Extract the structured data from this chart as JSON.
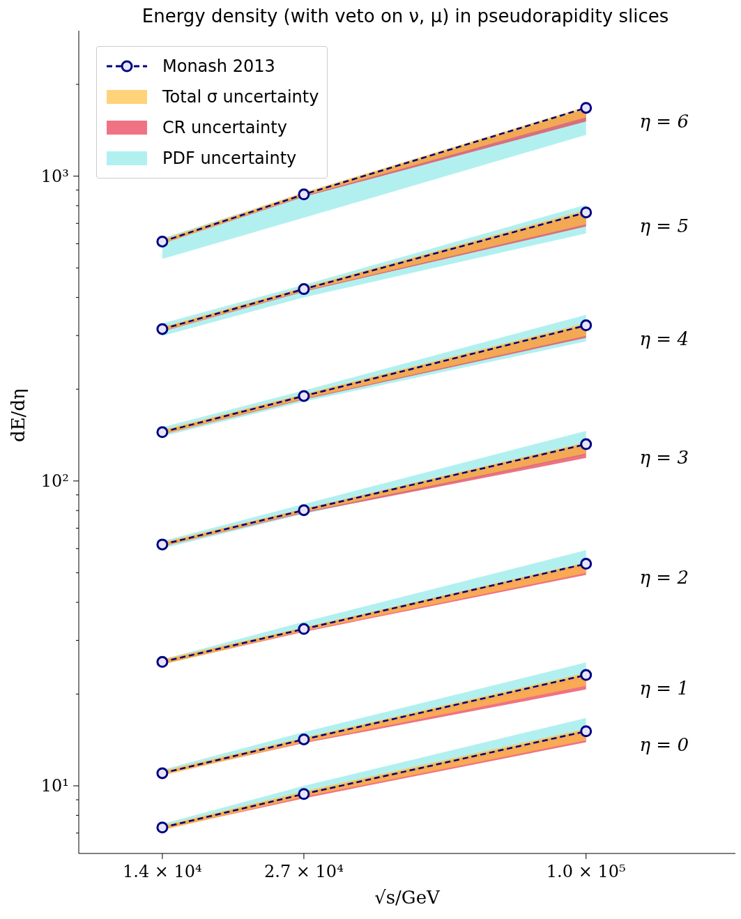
{
  "chart_data": {
    "type": "line",
    "title": "Energy density (with veto on ν, μ) in pseudorapidity slices",
    "xlabel": "√s/GeV",
    "ylabel": "dE/dη",
    "x": [
      14000,
      27000,
      100000
    ],
    "log": "xy",
    "grid": false,
    "legend": "top left",
    "marker": "circle",
    "line_style": "dashed",
    "xlim": [
      9500,
      200000
    ],
    "xticks": [
      {
        "value": 14000,
        "label": "1.4 × 10⁴"
      },
      {
        "value": 27000,
        "label": "2.7 × 10⁴"
      },
      {
        "value": 100000,
        "label": "1.0 × 10⁵"
      }
    ],
    "ylim": [
      6,
      3000
    ],
    "yticks": [
      {
        "value": 7,
        "label": null
      },
      {
        "value": 8,
        "label": null
      },
      {
        "value": 9,
        "label": null
      },
      {
        "value": 10,
        "label": "10¹"
      },
      {
        "value": 20,
        "label": null
      },
      {
        "value": 30,
        "label": null
      },
      {
        "value": 40,
        "label": null
      },
      {
        "value": 50,
        "label": null
      },
      {
        "value": 60,
        "label": null
      },
      {
        "value": 70,
        "label": null
      },
      {
        "value": 80,
        "label": null
      },
      {
        "value": 90,
        "label": null
      },
      {
        "value": 100,
        "label": "10²"
      },
      {
        "value": 200,
        "label": null
      },
      {
        "value": 300,
        "label": null
      },
      {
        "value": 400,
        "label": null
      },
      {
        "value": 500,
        "label": null
      },
      {
        "value": 600,
        "label": null
      },
      {
        "value": 700,
        "label": null
      },
      {
        "value": 800,
        "label": null
      },
      {
        "value": 900,
        "label": null
      },
      {
        "value": 1000,
        "label": "10³"
      },
      {
        "value": 2000,
        "label": null
      }
    ],
    "series": [
      {
        "name": "Monash 2013",
        "color": "#000080",
        "values": [
          7.3,
          9.4,
          15.1
        ]
      },
      {
        "name": "Total σ uncertainty",
        "color": "#ffc040",
        "values": [
          null,
          null,
          null
        ],
        "lower": [
          7.15,
          9.2,
          14.1
        ],
        "upper": [
          7.4,
          9.6,
          15.4
        ]
      },
      {
        "name": "CR uncertainty",
        "color": "#e8384f",
        "values": [
          null,
          null,
          null
        ],
        "lower": [
          7.2,
          9.1,
          13.9
        ],
        "upper": [
          7.35,
          9.5,
          15.2
        ]
      },
      {
        "name": "PDF uncertainty",
        "color": "#00cccc",
        "values": [
          null,
          null,
          null
        ],
        "lower": [
          7.2,
          9.3,
          14.8
        ],
        "upper": [
          7.5,
          10.0,
          16.7
        ]
      },
      {
        "color": "#000080",
        "values": [
          11.0,
          14.2,
          23.1
        ]
      },
      {
        "color": "#ffc040",
        "values": [
          null,
          null,
          null
        ],
        "lower": [
          10.8,
          13.9,
          21.3
        ],
        "upper": [
          11.2,
          14.4,
          23.5
        ]
      },
      {
        "color": "#e8384f",
        "values": [
          null,
          null,
          null
        ],
        "lower": [
          10.9,
          13.8,
          20.7
        ],
        "upper": [
          11.1,
          14.3,
          23.2
        ]
      },
      {
        "color": "#00cccc",
        "values": [
          null,
          null,
          null
        ],
        "lower": [
          10.9,
          14.0,
          22.5
        ],
        "upper": [
          11.3,
          15.0,
          25.4
        ]
      },
      {
        "color": "#000080",
        "values": [
          25.5,
          32.7,
          53.5
        ]
      },
      {
        "color": "#ffc040",
        "values": [
          null,
          null,
          null
        ],
        "lower": [
          25,
          32.2,
          49.9
        ],
        "upper": [
          26,
          33.1,
          54.1
        ]
      },
      {
        "color": "#e8384f",
        "values": [
          null,
          null,
          null
        ],
        "lower": [
          25.1,
          32,
          49.2
        ],
        "upper": [
          25.8,
          33,
          53.8
        ]
      },
      {
        "color": "#00cccc",
        "values": [
          null,
          null,
          null
        ],
        "lower": [
          25,
          32.2,
          52.5
        ],
        "upper": [
          26,
          34.5,
          59.3
        ]
      },
      {
        "color": "#000080",
        "values": [
          61.9,
          80.2,
          132
        ]
      },
      {
        "color": "#ffc040",
        "values": [
          null,
          null,
          null
        ],
        "lower": [
          61,
          79,
          123
        ],
        "upper": [
          63,
          81,
          134
        ]
      },
      {
        "color": "#e8384f",
        "values": [
          null,
          null,
          null
        ],
        "lower": [
          61,
          78.5,
          119
        ],
        "upper": [
          62.5,
          81,
          133
        ]
      },
      {
        "color": "#00cccc",
        "values": [
          null,
          null,
          null
        ],
        "lower": [
          60,
          78,
          122
        ],
        "upper": [
          63.5,
          84,
          146
        ]
      },
      {
        "color": "#000080",
        "values": [
          144.6,
          190,
          324
        ]
      },
      {
        "color": "#ffc040",
        "values": [
          null,
          null,
          null
        ],
        "lower": [
          142,
          186,
          299
        ],
        "upper": [
          147,
          193,
          330
        ]
      },
      {
        "color": "#e8384f",
        "values": [
          null,
          null,
          null
        ],
        "lower": [
          142,
          185,
          295
        ],
        "upper": [
          146,
          192,
          326
        ]
      },
      {
        "color": "#00cccc",
        "values": [
          null,
          null,
          null
        ],
        "lower": [
          140,
          182,
          287
        ],
        "upper": [
          150,
          198,
          351
        ]
      },
      {
        "color": "#000080",
        "values": [
          315,
          426,
          760
        ]
      },
      {
        "color": "#ffc040",
        "values": [
          null,
          null,
          null
        ],
        "lower": [
          310,
          420,
          695
        ],
        "upper": [
          320,
          432,
          775
        ]
      },
      {
        "color": "#e8384f",
        "values": [
          null,
          null,
          null
        ],
        "lower": [
          309,
          418,
          684
        ],
        "upper": [
          318,
          430,
          765
        ]
      },
      {
        "color": "#00cccc",
        "values": [
          null,
          null,
          null
        ],
        "lower": [
          299,
          400,
          649
        ],
        "upper": [
          329,
          440,
          805
        ]
      },
      {
        "color": "#000080",
        "values": [
          610,
          871,
          1675
        ]
      },
      {
        "color": "#ffc040",
        "values": [
          null,
          null,
          null
        ],
        "lower": [
          600,
          860,
          1560
        ],
        "upper": [
          620,
          885,
          1690
        ]
      },
      {
        "color": "#e8384f",
        "values": [
          null,
          null,
          null
        ],
        "lower": [
          600,
          855,
          1510
        ],
        "upper": [
          615,
          875,
          1660
        ]
      },
      {
        "color": "#00cccc",
        "values": [
          null,
          null,
          null
        ],
        "lower": [
          535,
          730,
          1365
        ],
        "upper": [
          626,
          880,
          1680
        ]
      }
    ],
    "annotations": [
      "η = 0",
      "η = 1",
      "η = 2",
      "η = 3",
      "η = 4",
      "η = 5",
      "η = 6"
    ]
  }
}
